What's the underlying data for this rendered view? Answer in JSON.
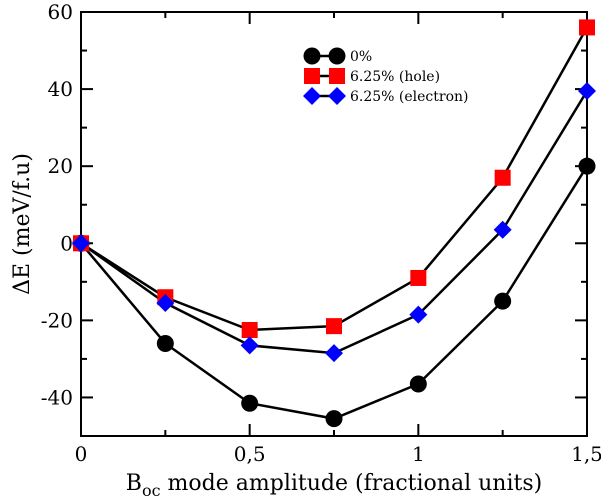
{
  "chart_data": {
    "type": "line",
    "x": [
      0,
      0.25,
      0.5,
      0.75,
      1,
      1.25,
      1.5
    ],
    "xticks": [
      {
        "value": 0,
        "label": "0"
      },
      {
        "value": 0.5,
        "label": "0,5"
      },
      {
        "value": 1,
        "label": "1"
      },
      {
        "value": 1.5,
        "label": "1,5"
      }
    ],
    "yticks": [
      {
        "value": -40,
        "label": "-40"
      },
      {
        "value": -20,
        "label": "-20"
      },
      {
        "value": 0,
        "label": "0"
      },
      {
        "value": 20,
        "label": "20"
      },
      {
        "value": 40,
        "label": "40"
      },
      {
        "value": 60,
        "label": "60"
      }
    ],
    "xlim": [
      0,
      1.5
    ],
    "ylim": [
      -50,
      60
    ],
    "xlabel": {
      "main": "B",
      "sub": "oc",
      "rest": " mode amplitude (fractional units)"
    },
    "ylabel": "ΔE (meV/f.u)",
    "legend_position": "top-center",
    "grid": false,
    "series": [
      {
        "name": "0%",
        "marker": "circle",
        "color": "#000000",
        "values": [
          0,
          -26,
          -41.5,
          -45.5,
          -36.5,
          -15,
          20
        ]
      },
      {
        "name": "6.25% (hole)",
        "marker": "square",
        "color": "#ff0000",
        "values": [
          0,
          -14,
          -22.5,
          -21.5,
          -9,
          17,
          56
        ]
      },
      {
        "name": "6.25% (electron)",
        "marker": "diamond",
        "color": "#0000ff",
        "values": [
          0,
          -15.5,
          -26.5,
          -28.5,
          -18.5,
          3.5,
          39.5
        ]
      }
    ]
  }
}
